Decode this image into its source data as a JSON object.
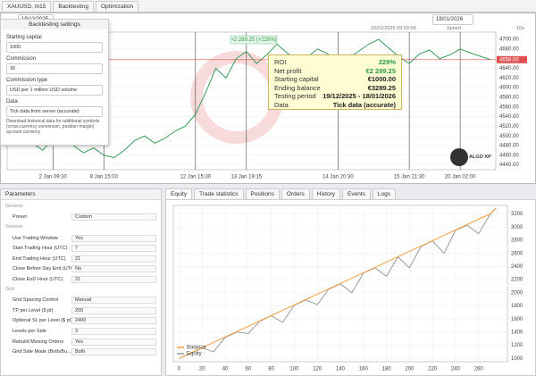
{
  "toolbar": {
    "symbol": "XAUUSD, m15",
    "tabs": [
      "Backtesting",
      "Optimization"
    ],
    "start_date": "19/12/2025",
    "end_date": "18/01/2026",
    "timeline": "20/01/2026 09:59:54",
    "speed_label": "Speed",
    "speed": "10x"
  },
  "settings": {
    "title": "Backtesting settings",
    "fields": [
      {
        "label": "Starting capital",
        "value": "1000"
      },
      {
        "label": "Commission",
        "value": "30"
      },
      {
        "label": "Commission type",
        "value": "USD per 1 million USD volume"
      },
      {
        "label": "Data",
        "value": "Tick data from server (accurate)"
      }
    ],
    "checkbox": "Download historical data for additional symbols (cross-currency conversion, position margin) account currency"
  },
  "summary": {
    "rows": [
      {
        "label": "ROI",
        "value": "229%"
      },
      {
        "label": "Net profit",
        "value": "€2 289.25"
      },
      {
        "label": "Starting capital",
        "value": "€1000.00"
      },
      {
        "label": "Ending balance",
        "value": "€3289.25"
      },
      {
        "label": "Testing period",
        "value": "19/12/2025 - 18/01/2026"
      },
      {
        "label": "Data",
        "value": "Tick data (accurate)"
      }
    ]
  },
  "logo": "ALGO XP",
  "parameters": {
    "title": "Parameters",
    "sections": [
      {
        "name": "General",
        "rows": [
          [
            "Preset",
            "Custom"
          ]
        ]
      },
      {
        "name": "Session",
        "rows": [
          [
            "Use Trading Window",
            "Yes"
          ],
          [
            "Start Trading Hour (UTC)",
            "7"
          ],
          [
            "End Trading Hour (UTC)",
            "21"
          ],
          [
            "Close Before Day End (UTC)",
            "No"
          ],
          [
            "Close EoD Hour (UTC)",
            "21"
          ]
        ]
      },
      {
        "name": "Grid",
        "rows": [
          [
            "Grid Spacing Control",
            "Manual"
          ],
          [
            "TP per Level ($ pt)",
            "200"
          ],
          [
            "Optional SL per Level ($ pt)",
            "2400"
          ],
          [
            "Levels per Side",
            "3"
          ],
          [
            "Rebuild Missing Orders",
            "Yes"
          ],
          [
            "Grid Side Mode (Both/Bu...)",
            "Both"
          ]
        ]
      }
    ]
  },
  "bottom_tabs": [
    "Equity",
    "Trade statistics",
    "Positions",
    "Orders",
    "History",
    "Events",
    "Logs"
  ],
  "chart_data": [
    {
      "type": "line",
      "color": "#3a9a5a",
      "profit_label": "+2 289.25 (+229%)",
      "price_marker": {
        "value": 4658,
        "label": "4658.00"
      },
      "categories": [
        null,
        null,
        null,
        null,
        "2 Jan 09:30",
        null,
        null,
        null,
        null,
        "8 Jan 15:00",
        null,
        null,
        null,
        null,
        null,
        null,
        null,
        null,
        "12 Jan 15:30",
        null,
        null,
        null,
        null,
        "13 Jan 19:15",
        null,
        null,
        null,
        null,
        null,
        null,
        null,
        null,
        "14 Jan 20:30",
        null,
        null,
        null,
        null,
        null,
        null,
        "15 Jan 21:30",
        null,
        null,
        null,
        null,
        "20 Jan 02:00",
        null,
        null,
        null
      ],
      "values": [
        4490,
        4505,
        4485,
        4470,
        4495,
        4510,
        4480,
        4465,
        4475,
        4460,
        4455,
        4470,
        4490,
        4500,
        4485,
        4495,
        4510,
        4520,
        4545,
        4590,
        4640,
        4620,
        4660,
        4675,
        4650,
        4668,
        4690,
        4672,
        4655,
        4664,
        4680,
        4670,
        4648,
        4660,
        4675,
        4690,
        4700,
        4682,
        4664,
        4650,
        4670,
        4678,
        4660,
        4668,
        4680,
        4672,
        4665,
        4658
      ],
      "ylim": [
        4430,
        4715
      ],
      "yticks": [
        {
          "value": 4440,
          "label": "4440.00"
        },
        {
          "value": 4460,
          "label": "4460.00"
        },
        {
          "value": 4480,
          "label": "4480.00"
        },
        {
          "value": 4500,
          "label": "4500.00"
        },
        {
          "value": 4520,
          "label": "4520.00"
        },
        {
          "value": 4540,
          "label": "4540.00"
        },
        {
          "value": 4560,
          "label": "4560.00"
        },
        {
          "value": 4580,
          "label": "4580.00"
        },
        {
          "value": 4600,
          "label": "4600.00"
        },
        {
          "value": 4620,
          "label": "4620.00"
        },
        {
          "value": 4640,
          "label": "4640.00"
        },
        {
          "value": 4660,
          "label": "4660.00"
        },
        {
          "value": 4680,
          "label": "4680.00"
        },
        {
          "value": 4700,
          "label": "4700.00"
        }
      ],
      "grid": true
    },
    {
      "type": "line",
      "legend": "bottom-left",
      "x": [
        0,
        10,
        20,
        30,
        40,
        50,
        60,
        70,
        80,
        90,
        100,
        110,
        120,
        130,
        140,
        150,
        160,
        170,
        180,
        190,
        200,
        210,
        220,
        230,
        240,
        250,
        260,
        270,
        275
      ],
      "series": [
        {
          "name": "Balance",
          "color": "#f0a040",
          "values": [
            1000,
            1082,
            1163,
            1245,
            1326,
            1408,
            1489,
            1571,
            1652,
            1734,
            1815,
            1897,
            1978,
            2060,
            2141,
            2223,
            2304,
            2386,
            2467,
            2549,
            2630,
            2712,
            2793,
            2875,
            2956,
            3038,
            3119,
            3201,
            3289.25
          ]
        },
        {
          "name": "Equity",
          "color": "#9a9a9a",
          "values": [
            1000,
            1075,
            1160,
            1100,
            1320,
            1400,
            1380,
            1565,
            1650,
            1550,
            1810,
            1890,
            1820,
            2055,
            2135,
            2000,
            2300,
            2380,
            2250,
            2545,
            2380,
            2705,
            2790,
            2600,
            2950,
            3030,
            2900,
            3195,
            3289.25
          ]
        }
      ],
      "xlim": [
        -5,
        285
      ],
      "xticks": [
        0,
        20,
        40,
        60,
        80,
        100,
        120,
        140,
        160,
        180,
        200,
        220,
        240,
        260
      ],
      "ylim": [
        950,
        3330
      ],
      "yticks": [
        1000,
        1200,
        1400,
        1600,
        1800,
        2000,
        2200,
        2400,
        2600,
        2800,
        3000,
        3200
      ],
      "grid": true
    }
  ]
}
